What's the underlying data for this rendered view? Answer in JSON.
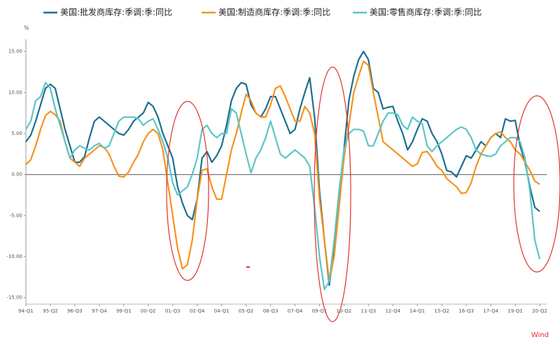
{
  "chart_data": {
    "type": "line",
    "series": [
      {
        "name": "美国:批发商库存:季调:季:同比",
        "color": "#1d6e91",
        "values": [
          4.0,
          4.8,
          6.5,
          8.5,
          10.5,
          11.0,
          10.5,
          8.0,
          5.5,
          3.5,
          1.5,
          1.5,
          2.2,
          4.5,
          6.5,
          7.0,
          6.5,
          6.0,
          5.5,
          5.0,
          4.8,
          5.5,
          6.5,
          7.0,
          7.5,
          8.8,
          8.3,
          7.0,
          5.0,
          3.5,
          2.0,
          -1.5,
          -3.5,
          -5.0,
          -5.5,
          -3.0,
          2.0,
          2.8,
          1.5,
          2.3,
          3.5,
          6.0,
          9.0,
          10.5,
          11.2,
          11.0,
          8.5,
          7.5,
          7.0,
          8.0,
          9.5,
          9.5,
          8.0,
          6.5,
          5.0,
          5.5,
          8.0,
          10.0,
          11.8,
          7.0,
          -2.0,
          -8.0,
          -13.5,
          -9.0,
          -3.0,
          3.0,
          9.0,
          12.0,
          14.0,
          15.0,
          14.0,
          10.5,
          10.0,
          8.0,
          8.2,
          8.3,
          6.5,
          5.0,
          3.0,
          4.0,
          5.5,
          6.8,
          6.5,
          5.0,
          4.0,
          2.5,
          0.5,
          0.3,
          -0.3,
          1.0,
          2.3,
          2.0,
          3.0,
          4.0,
          3.5,
          4.5,
          5.0,
          4.5,
          6.8,
          6.5,
          6.6,
          3.5,
          1.5,
          -1.5,
          -4.0,
          -4.5
        ]
      },
      {
        "name": "美国:制造商库存:季调:季:同比",
        "color": "#f7921e",
        "values": [
          1.2,
          1.8,
          3.5,
          5.5,
          7.2,
          7.7,
          7.3,
          6.5,
          4.0,
          2.0,
          1.5,
          1.0,
          2.0,
          2.5,
          3.0,
          3.5,
          3.3,
          2.5,
          1.0,
          -0.2,
          -0.3,
          0.3,
          1.5,
          2.5,
          4.0,
          5.0,
          5.5,
          5.0,
          3.0,
          -1.0,
          -5.0,
          -9.0,
          -11.5,
          -11.0,
          -8.0,
          -3.0,
          0.5,
          0.7,
          -1.5,
          -3.0,
          -3.0,
          0.0,
          3.0,
          5.0,
          7.5,
          9.8,
          9.0,
          7.5,
          7.0,
          7.0,
          8.5,
          10.5,
          10.8,
          9.5,
          8.0,
          6.5,
          6.5,
          8.3,
          7.5,
          5.0,
          -3.0,
          -8.0,
          -13.0,
          -10.0,
          -4.0,
          2.0,
          6.0,
          10.0,
          12.0,
          13.8,
          13.3,
          10.0,
          7.0,
          4.0,
          3.5,
          3.0,
          2.5,
          2.0,
          1.5,
          1.0,
          1.3,
          2.7,
          2.8,
          2.0,
          1.0,
          0.5,
          -0.5,
          -1.0,
          -1.5,
          -2.3,
          -2.2,
          -1.0,
          1.0,
          2.5,
          3.5,
          4.5,
          5.0,
          5.2,
          4.5,
          4.0,
          3.0,
          2.5,
          1.5,
          0.5,
          -0.8,
          -1.2
        ]
      },
      {
        "name": "美国:零售商库存:季调:季:同比",
        "color": "#5cc5c6",
        "values": [
          5.5,
          6.5,
          9.0,
          9.5,
          11.2,
          10.5,
          8.0,
          6.0,
          4.0,
          2.0,
          3.0,
          3.5,
          3.2,
          3.0,
          3.5,
          3.8,
          3.2,
          3.5,
          5.0,
          6.5,
          7.0,
          7.0,
          7.0,
          6.8,
          6.0,
          6.5,
          6.8,
          5.5,
          4.0,
          2.0,
          -1.0,
          -2.5,
          -2.0,
          -1.5,
          0.0,
          2.0,
          5.5,
          6.0,
          5.0,
          4.5,
          5.0,
          5.0,
          8.0,
          7.5,
          5.0,
          2.5,
          0.2,
          2.0,
          3.0,
          4.5,
          6.5,
          4.5,
          2.5,
          2.0,
          2.5,
          3.0,
          2.5,
          2.0,
          1.0,
          -4.0,
          -10.0,
          -14.0,
          -13.0,
          -8.0,
          -2.0,
          3.0,
          5.0,
          5.5,
          5.5,
          5.3,
          3.5,
          3.5,
          5.0,
          6.5,
          7.5,
          7.5,
          7.3,
          6.0,
          5.5,
          7.0,
          6.5,
          6.2,
          3.5,
          2.8,
          3.5,
          4.0,
          4.5,
          5.0,
          5.5,
          5.8,
          5.5,
          4.5,
          3.0,
          2.5,
          2.3,
          2.2,
          2.5,
          3.5,
          4.0,
          4.5,
          4.5,
          4.0,
          2.0,
          -2.0,
          -8.0,
          -10.3
        ]
      }
    ],
    "categories": [
      "94-Q1",
      null,
      null,
      null,
      null,
      "95-Q2",
      null,
      null,
      null,
      null,
      "96-Q3",
      null,
      null,
      null,
      null,
      "97-Q4",
      null,
      null,
      null,
      null,
      "99-Q1",
      null,
      null,
      null,
      null,
      "00-Q2",
      null,
      null,
      null,
      null,
      "01-Q3",
      null,
      null,
      null,
      null,
      "02-Q4",
      null,
      null,
      null,
      null,
      "04-Q1",
      null,
      null,
      null,
      null,
      "05-Q2",
      null,
      null,
      null,
      null,
      "06-Q3",
      null,
      null,
      null,
      null,
      "07-Q4",
      null,
      null,
      null,
      null,
      "09-Q1",
      null,
      null,
      null,
      null,
      "10-Q2",
      null,
      null,
      null,
      null,
      "11-Q3",
      null,
      null,
      null,
      null,
      "12-Q4",
      null,
      null,
      null,
      null,
      "14-Q1",
      null,
      null,
      null,
      null,
      "15-Q2",
      null,
      null,
      null,
      null,
      "16-Q3",
      null,
      null,
      null,
      null,
      "17-Q4",
      null,
      null,
      null,
      null,
      "19-Q1",
      null,
      null,
      null,
      null,
      "20-Q2"
    ],
    "y_unit": "%",
    "ylim": [
      -15.8,
      16.5
    ],
    "yticks": [
      {
        "value": 15,
        "label": "15.00"
      },
      {
        "value": 10,
        "label": "10.00"
      },
      {
        "value": 5,
        "label": "5.00"
      },
      {
        "value": 0,
        "label": "0.00"
      },
      {
        "value": -5,
        "label": "-5.00"
      },
      {
        "value": -10,
        "label": "-10.00"
      },
      {
        "value": -15,
        "label": "-15.00"
      }
    ],
    "source": "Wind"
  }
}
